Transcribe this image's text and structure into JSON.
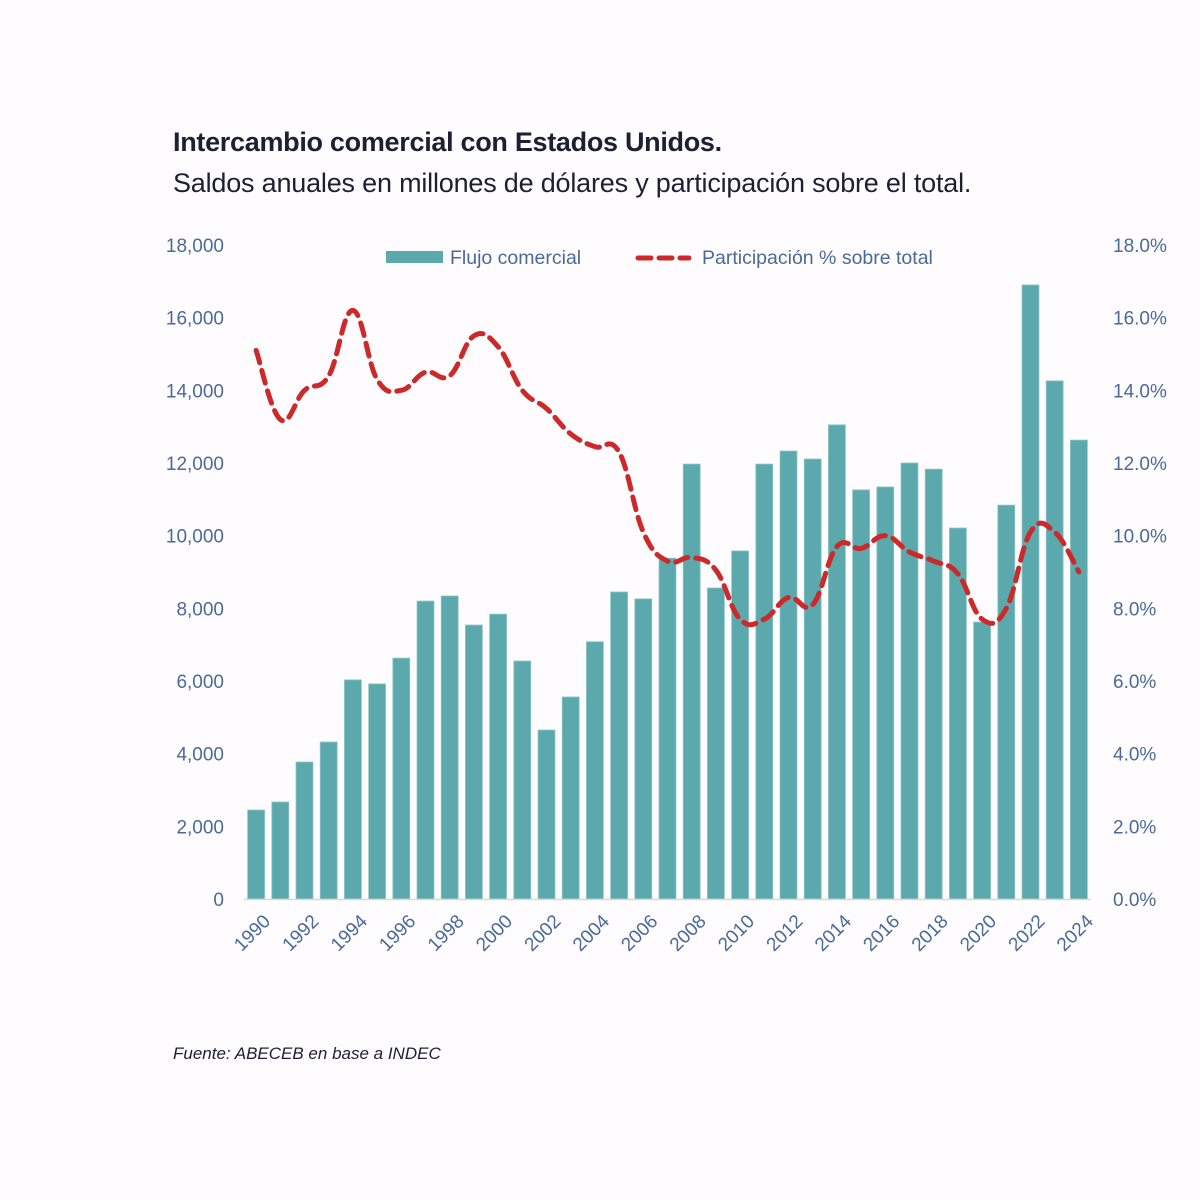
{
  "header": {
    "title": "Intercambio comercial con Estados Unidos.",
    "subtitle": "Saldos anuales en millones de dólares y participación sobre el total."
  },
  "footer": {
    "source": "Fuente: ABECEB en base a INDEC"
  },
  "chart_data": {
    "type": "bar",
    "title": "Intercambio comercial con Estados Unidos.",
    "subtitle": "Saldos anuales en millones de dólares y participación sobre el total.",
    "xlabel": "",
    "ylabel": "",
    "y2label": "",
    "categories": [
      "1990",
      "1991",
      "1992",
      "1993",
      "1994",
      "1995",
      "1996",
      "1997",
      "1998",
      "1999",
      "2000",
      "2001",
      "2002",
      "2003",
      "2004",
      "2005",
      "2006",
      "2007",
      "2008",
      "2009",
      "2010",
      "2011",
      "2012",
      "2013",
      "2014",
      "2015",
      "2016",
      "2017",
      "2018",
      "2019",
      "2020",
      "2021",
      "2022",
      "2023",
      "2024"
    ],
    "x_tick_labels": [
      "1990",
      "1992",
      "1994",
      "1996",
      "1998",
      "2000",
      "2002",
      "2004",
      "2006",
      "2008",
      "2010",
      "2012",
      "2014",
      "2016",
      "2018",
      "2020",
      "2022",
      "2024"
    ],
    "ylim": [
      0,
      18000
    ],
    "y_ticks": [
      "0",
      "2,000",
      "4,000",
      "6,000",
      "8,000",
      "10,000",
      "12,000",
      "14,000",
      "16,000",
      "18,000"
    ],
    "y2lim": [
      0,
      18
    ],
    "y2_ticks": [
      "0.0%",
      "2.0%",
      "4.0%",
      "6.0%",
      "8.0%",
      "10.0%",
      "12.0%",
      "14.0%",
      "16.0%",
      "18.0%"
    ],
    "grid": false,
    "legend_position": "top-center",
    "series": [
      {
        "name": "Flujo comercial",
        "type": "bar",
        "axis": "left",
        "color": "#5ba9ad",
        "values": [
          2450,
          2670,
          3770,
          4320,
          6030,
          5920,
          6630,
          8200,
          8340,
          7540,
          7840,
          6550,
          4650,
          5560,
          7080,
          8450,
          8260,
          9380,
          11970,
          8560,
          9580,
          11970,
          12330,
          12110,
          13050,
          11260,
          11340,
          12000,
          11830,
          10210,
          7620,
          10840,
          16900,
          14260,
          12630
        ]
      },
      {
        "name": "Participación % sobre total",
        "type": "line",
        "style": "dashed",
        "axis": "right",
        "color": "#cc2a2a",
        "values": [
          15.1,
          13.2,
          14.0,
          14.4,
          16.2,
          14.3,
          14.0,
          14.5,
          14.4,
          15.5,
          15.2,
          14.0,
          13.5,
          12.8,
          12.45,
          12.3,
          10.1,
          9.3,
          9.4,
          9.05,
          7.7,
          7.7,
          8.3,
          8.1,
          9.7,
          9.65,
          10.0,
          9.55,
          9.3,
          8.95,
          7.7,
          8.0,
          10.1,
          10.1,
          9.0
        ]
      }
    ]
  }
}
